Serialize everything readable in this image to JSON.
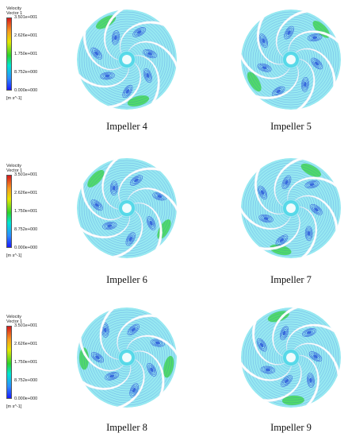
{
  "legend": {
    "title_line1": "Velocity",
    "title_line2": "Vector 1",
    "ticks": [
      "3.501e+001",
      "2.626e+001",
      "1.750e+001",
      "8.752e+000",
      "0.000e+000"
    ],
    "unit": "[m s^-1]"
  },
  "captions": [
    "Impeller 4",
    "Impeller 5",
    "Impeller 6",
    "Impeller 7",
    "Impeller 8",
    "Impeller 9"
  ],
  "colors": {
    "flow_cyan": "#3fd6e6",
    "flow_blue": "#2a55d9",
    "flow_green": "#3fd64a",
    "blade": "#ffffff"
  }
}
